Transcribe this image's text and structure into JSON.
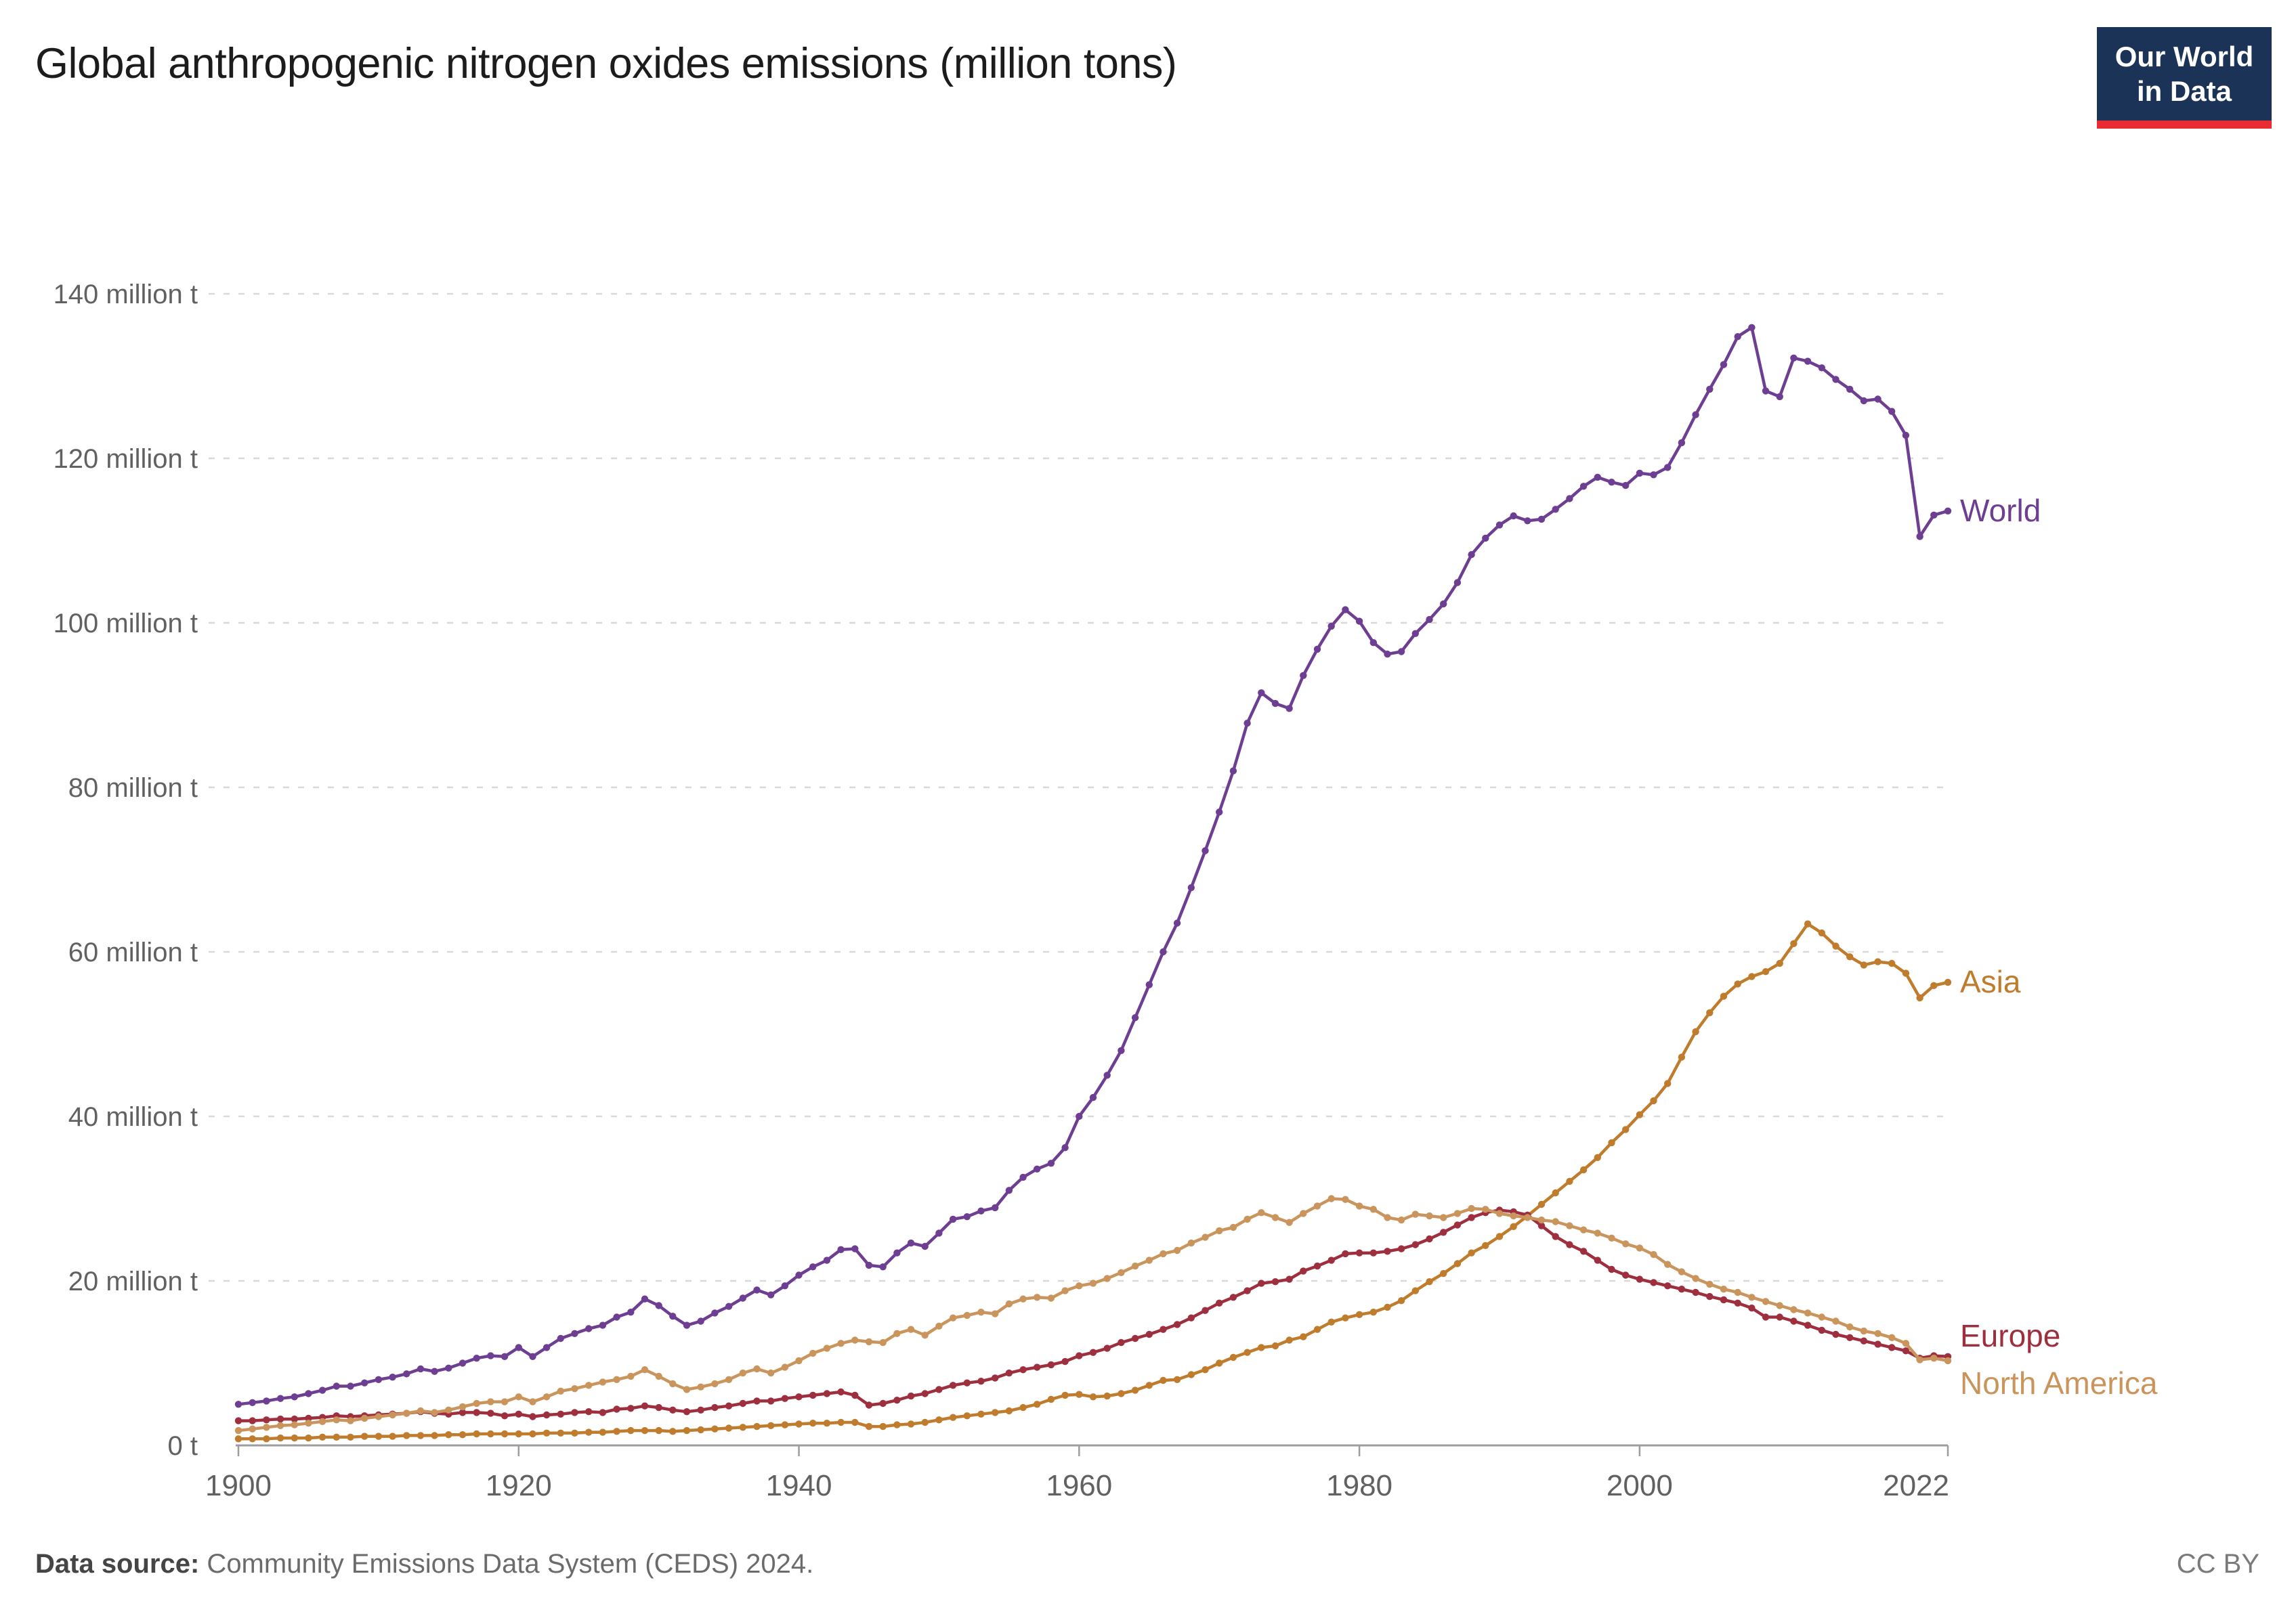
{
  "header": {
    "title": "Global anthropogenic nitrogen oxides emissions (million tons)",
    "logo": {
      "line1": "Our World",
      "line2": "in Data"
    }
  },
  "footer": {
    "datasource_label": "Data source:",
    "datasource_text": " Community Emissions Data System (CEDS) 2024.",
    "license": "CC BY"
  },
  "colors": {
    "world": "#6d3e91",
    "asia": "#c07c2d",
    "europe": "#9e2f3f",
    "north_america": "#ca955c",
    "grid": "#d9d9d9",
    "axis": "#9d9d9d",
    "tick_label": "#616161",
    "logo_bg": "#1b3357",
    "logo_red": "#ea2b33"
  },
  "chart_data": {
    "type": "line",
    "title": "Global anthropogenic nitrogen oxides emissions (million tons)",
    "unit": "million t",
    "xlabel": "",
    "ylabel": "",
    "ylim": [
      0,
      140
    ],
    "xlim": [
      1900,
      2022
    ],
    "x_start": 1900,
    "x_end": 2022,
    "x_step": 1,
    "x_ticks": [
      1900,
      1920,
      1940,
      1960,
      1980,
      2000,
      2022
    ],
    "y_ticks": [
      0,
      20,
      40,
      60,
      80,
      100,
      120,
      140
    ],
    "y_tick_labels": [
      "0 t",
      "20 million t",
      "40 million t",
      "60 million t",
      "80 million t",
      "100 million t",
      "120 million t",
      "140 million t"
    ],
    "grid": "horizontal-dashed",
    "legend_position": "end-of-line-labels",
    "marker": "point-every-year",
    "series": [
      {
        "name": "World",
        "color": "#6d3e91",
        "values": [
          5.0,
          5.2,
          5.4,
          5.7,
          5.9,
          6.3,
          6.7,
          7.2,
          7.2,
          7.6,
          8.0,
          8.3,
          8.7,
          9.3,
          9.0,
          9.4,
          10.0,
          10.6,
          10.9,
          10.8,
          11.9,
          10.8,
          11.9,
          13.0,
          13.6,
          14.2,
          14.6,
          15.6,
          16.2,
          17.8,
          17.0,
          15.7,
          14.6,
          15.1,
          16.1,
          16.9,
          17.9,
          18.9,
          18.3,
          19.4,
          20.7,
          21.7,
          22.5,
          23.8,
          23.9,
          21.9,
          21.7,
          23.4,
          24.6,
          24.2,
          25.8,
          27.5,
          27.8,
          28.5,
          28.9,
          31.0,
          32.6,
          33.6,
          34.3,
          36.2,
          40.0,
          42.3,
          45.0,
          48.0,
          52.0,
          56.0,
          60.0,
          63.5,
          67.8,
          72.3,
          77.0,
          82.0,
          87.8,
          91.5,
          90.2,
          89.6,
          93.6,
          96.8,
          99.6,
          101.6,
          100.2,
          97.6,
          96.2,
          96.5,
          98.7,
          100.4,
          102.3,
          104.9,
          108.3,
          110.3,
          111.9,
          113.0,
          112.4,
          112.6,
          113.8,
          115.1,
          116.6,
          117.7,
          117.1,
          116.7,
          118.2,
          118.0,
          118.9,
          121.9,
          125.3,
          128.4,
          131.4,
          134.8,
          135.9,
          128.2,
          127.5,
          132.2,
          131.8,
          131.0,
          129.6,
          128.4,
          127.0,
          127.2,
          125.7,
          122.8,
          110.5,
          113.1,
          113.6
        ]
      },
      {
        "name": "Asia",
        "color": "#c07c2d",
        "values": [
          0.8,
          0.8,
          0.8,
          0.9,
          0.9,
          0.9,
          1.0,
          1.0,
          1.0,
          1.1,
          1.1,
          1.1,
          1.2,
          1.2,
          1.2,
          1.3,
          1.3,
          1.4,
          1.4,
          1.4,
          1.4,
          1.4,
          1.5,
          1.5,
          1.5,
          1.6,
          1.6,
          1.7,
          1.8,
          1.8,
          1.8,
          1.7,
          1.8,
          1.9,
          2.0,
          2.1,
          2.2,
          2.3,
          2.4,
          2.5,
          2.6,
          2.7,
          2.7,
          2.8,
          2.8,
          2.3,
          2.3,
          2.5,
          2.6,
          2.8,
          3.1,
          3.4,
          3.6,
          3.8,
          4.0,
          4.2,
          4.6,
          5.0,
          5.6,
          6.1,
          6.2,
          5.9,
          6.0,
          6.3,
          6.7,
          7.3,
          7.9,
          8.0,
          8.6,
          9.2,
          10.0,
          10.7,
          11.3,
          11.9,
          12.1,
          12.8,
          13.2,
          14.1,
          15.0,
          15.5,
          15.9,
          16.2,
          16.8,
          17.6,
          18.8,
          19.9,
          20.9,
          22.1,
          23.4,
          24.3,
          25.4,
          26.6,
          27.9,
          29.3,
          30.7,
          32.1,
          33.5,
          35.0,
          36.8,
          38.4,
          40.2,
          41.9,
          44.0,
          47.2,
          50.3,
          52.6,
          54.6,
          56.1,
          57.0,
          57.6,
          58.6,
          61.0,
          63.4,
          62.3,
          60.7,
          59.4,
          58.4,
          58.8,
          58.6,
          57.4,
          54.4,
          55.9,
          56.3
        ]
      },
      {
        "name": "Europe",
        "color": "#9e2f3f",
        "values": [
          3.0,
          3.0,
          3.1,
          3.2,
          3.2,
          3.3,
          3.4,
          3.6,
          3.5,
          3.6,
          3.7,
          3.8,
          3.9,
          4.1,
          3.9,
          3.8,
          4.0,
          4.0,
          3.9,
          3.6,
          3.8,
          3.5,
          3.7,
          3.8,
          4.0,
          4.1,
          4.0,
          4.4,
          4.5,
          4.8,
          4.6,
          4.3,
          4.1,
          4.3,
          4.6,
          4.8,
          5.1,
          5.4,
          5.4,
          5.7,
          5.9,
          6.1,
          6.3,
          6.5,
          6.1,
          4.9,
          5.1,
          5.5,
          6.0,
          6.3,
          6.8,
          7.3,
          7.6,
          7.8,
          8.2,
          8.8,
          9.2,
          9.5,
          9.8,
          10.2,
          10.9,
          11.3,
          11.8,
          12.5,
          13.0,
          13.5,
          14.1,
          14.7,
          15.5,
          16.4,
          17.3,
          18.0,
          18.8,
          19.7,
          19.9,
          20.2,
          21.2,
          21.8,
          22.5,
          23.3,
          23.4,
          23.4,
          23.6,
          23.9,
          24.4,
          25.1,
          25.9,
          26.8,
          27.7,
          28.3,
          28.6,
          28.4,
          28.0,
          26.7,
          25.4,
          24.4,
          23.6,
          22.5,
          21.4,
          20.7,
          20.2,
          19.8,
          19.4,
          19.0,
          18.6,
          18.1,
          17.7,
          17.3,
          16.7,
          15.6,
          15.6,
          15.1,
          14.6,
          14.0,
          13.5,
          13.1,
          12.7,
          12.3,
          11.9,
          11.5,
          10.6,
          10.9,
          10.8
        ]
      },
      {
        "name": "North America",
        "color": "#ca955c",
        "values": [
          1.8,
          2.0,
          2.2,
          2.4,
          2.5,
          2.7,
          2.9,
          3.1,
          3.0,
          3.3,
          3.5,
          3.7,
          3.9,
          4.2,
          4.0,
          4.3,
          4.7,
          5.1,
          5.3,
          5.3,
          5.9,
          5.3,
          5.9,
          6.6,
          6.9,
          7.3,
          7.7,
          8.0,
          8.4,
          9.2,
          8.4,
          7.5,
          6.8,
          7.1,
          7.5,
          8.0,
          8.8,
          9.3,
          8.8,
          9.5,
          10.3,
          11.2,
          11.8,
          12.4,
          12.8,
          12.6,
          12.5,
          13.6,
          14.1,
          13.4,
          14.5,
          15.5,
          15.8,
          16.2,
          16.0,
          17.2,
          17.8,
          18.0,
          17.9,
          18.8,
          19.4,
          19.7,
          20.3,
          21.0,
          21.8,
          22.5,
          23.3,
          23.7,
          24.6,
          25.3,
          26.1,
          26.5,
          27.5,
          28.3,
          27.7,
          27.1,
          28.2,
          29.1,
          30.0,
          29.9,
          29.1,
          28.7,
          27.7,
          27.4,
          28.1,
          27.9,
          27.7,
          28.2,
          28.8,
          28.7,
          28.2,
          27.9,
          27.7,
          27.4,
          27.2,
          26.7,
          26.2,
          25.8,
          25.2,
          24.5,
          24.0,
          23.2,
          22.0,
          21.1,
          20.3,
          19.6,
          19.0,
          18.6,
          18.0,
          17.5,
          17.0,
          16.5,
          16.1,
          15.6,
          15.1,
          14.4,
          13.9,
          13.6,
          13.1,
          12.4,
          10.4,
          10.6,
          10.3
        ]
      }
    ]
  }
}
